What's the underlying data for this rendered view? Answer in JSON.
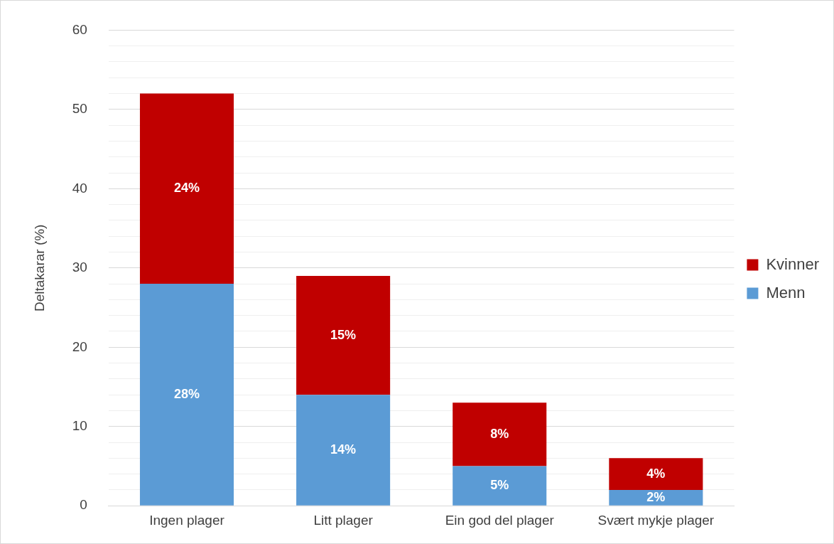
{
  "chart_data": {
    "type": "bar",
    "stacked": true,
    "ylabel": "Deltakarar (%)",
    "categories": [
      "Ingen plager",
      "Litt plager",
      "Ein god del plager",
      "Svært mykje plager"
    ],
    "series": [
      {
        "name": "Menn",
        "color": "#5b9bd5",
        "values": [
          28,
          14,
          5,
          2
        ],
        "value_labels": [
          "28%",
          "14%",
          "5%",
          "2%"
        ]
      },
      {
        "name": "Kvinner",
        "color": "#c00000",
        "values": [
          24,
          15,
          8,
          4
        ],
        "value_labels": [
          "24%",
          "15%",
          "8%",
          "4%"
        ]
      }
    ],
    "ylim": [
      0,
      60
    ],
    "yticks": [
      0,
      {
        "value": 2,
        "label": null
      },
      {
        "value": 4,
        "label": null
      },
      {
        "value": 6,
        "label": null
      },
      {
        "value": 8,
        "label": null
      },
      10,
      {
        "value": 12,
        "label": null
      },
      {
        "value": 14,
        "label": null
      },
      {
        "value": 16,
        "label": null
      },
      {
        "value": 18,
        "label": null
      },
      20,
      {
        "value": 22,
        "label": null
      },
      {
        "value": 24,
        "label": null
      },
      {
        "value": 26,
        "label": null
      },
      {
        "value": 28,
        "label": null
      },
      30,
      {
        "value": 32,
        "label": null
      },
      {
        "value": 34,
        "label": null
      },
      {
        "value": 36,
        "label": null
      },
      {
        "value": 38,
        "label": null
      },
      40,
      {
        "value": 42,
        "label": null
      },
      {
        "value": 44,
        "label": null
      },
      {
        "value": 46,
        "label": null
      },
      {
        "value": 48,
        "label": null
      },
      50,
      {
        "value": 52,
        "label": null
      },
      {
        "value": 54,
        "label": null
      },
      {
        "value": 56,
        "label": null
      },
      {
        "value": 58,
        "label": null
      },
      60
    ],
    "grid": "y",
    "legend": "right"
  }
}
